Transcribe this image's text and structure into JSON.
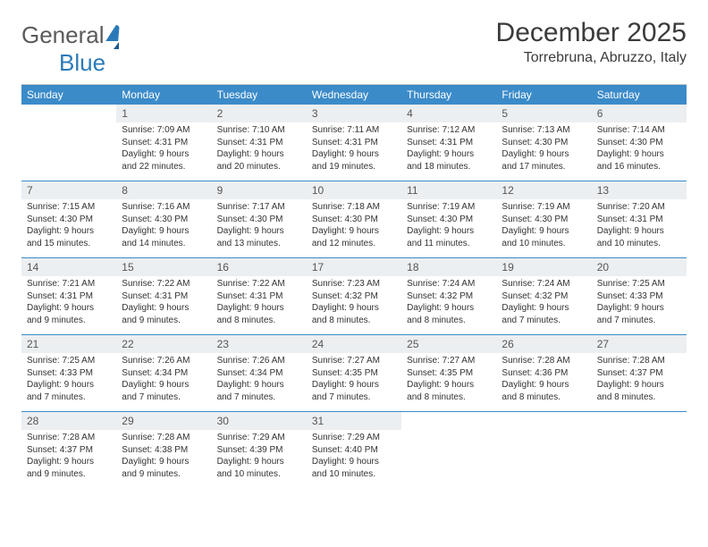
{
  "logo": {
    "part1": "General",
    "part2": "Blue"
  },
  "title": "December 2025",
  "location": "Torrebruna, Abruzzo, Italy",
  "colors": {
    "header_bg": "#3b8bc9",
    "header_text": "#ffffff",
    "daynum_bg": "#eceff1",
    "cell_border": "#3b8bc9",
    "body_text": "#333333",
    "logo_gray": "#5a5a5a",
    "logo_blue": "#2a7ab9"
  },
  "typography": {
    "title_fontsize": 30,
    "location_fontsize": 16,
    "dow_fontsize": 12,
    "daynum_fontsize": 12,
    "body_fontsize": 10
  },
  "days_of_week": [
    "Sunday",
    "Monday",
    "Tuesday",
    "Wednesday",
    "Thursday",
    "Friday",
    "Saturday"
  ],
  "start_offset": 1,
  "days": [
    {
      "n": "1",
      "sunrise": "Sunrise: 7:09 AM",
      "sunset": "Sunset: 4:31 PM",
      "day1": "Daylight: 9 hours",
      "day2": "and 22 minutes."
    },
    {
      "n": "2",
      "sunrise": "Sunrise: 7:10 AM",
      "sunset": "Sunset: 4:31 PM",
      "day1": "Daylight: 9 hours",
      "day2": "and 20 minutes."
    },
    {
      "n": "3",
      "sunrise": "Sunrise: 7:11 AM",
      "sunset": "Sunset: 4:31 PM",
      "day1": "Daylight: 9 hours",
      "day2": "and 19 minutes."
    },
    {
      "n": "4",
      "sunrise": "Sunrise: 7:12 AM",
      "sunset": "Sunset: 4:31 PM",
      "day1": "Daylight: 9 hours",
      "day2": "and 18 minutes."
    },
    {
      "n": "5",
      "sunrise": "Sunrise: 7:13 AM",
      "sunset": "Sunset: 4:30 PM",
      "day1": "Daylight: 9 hours",
      "day2": "and 17 minutes."
    },
    {
      "n": "6",
      "sunrise": "Sunrise: 7:14 AM",
      "sunset": "Sunset: 4:30 PM",
      "day1": "Daylight: 9 hours",
      "day2": "and 16 minutes."
    },
    {
      "n": "7",
      "sunrise": "Sunrise: 7:15 AM",
      "sunset": "Sunset: 4:30 PM",
      "day1": "Daylight: 9 hours",
      "day2": "and 15 minutes."
    },
    {
      "n": "8",
      "sunrise": "Sunrise: 7:16 AM",
      "sunset": "Sunset: 4:30 PM",
      "day1": "Daylight: 9 hours",
      "day2": "and 14 minutes."
    },
    {
      "n": "9",
      "sunrise": "Sunrise: 7:17 AM",
      "sunset": "Sunset: 4:30 PM",
      "day1": "Daylight: 9 hours",
      "day2": "and 13 minutes."
    },
    {
      "n": "10",
      "sunrise": "Sunrise: 7:18 AM",
      "sunset": "Sunset: 4:30 PM",
      "day1": "Daylight: 9 hours",
      "day2": "and 12 minutes."
    },
    {
      "n": "11",
      "sunrise": "Sunrise: 7:19 AM",
      "sunset": "Sunset: 4:30 PM",
      "day1": "Daylight: 9 hours",
      "day2": "and 11 minutes."
    },
    {
      "n": "12",
      "sunrise": "Sunrise: 7:19 AM",
      "sunset": "Sunset: 4:30 PM",
      "day1": "Daylight: 9 hours",
      "day2": "and 10 minutes."
    },
    {
      "n": "13",
      "sunrise": "Sunrise: 7:20 AM",
      "sunset": "Sunset: 4:31 PM",
      "day1": "Daylight: 9 hours",
      "day2": "and 10 minutes."
    },
    {
      "n": "14",
      "sunrise": "Sunrise: 7:21 AM",
      "sunset": "Sunset: 4:31 PM",
      "day1": "Daylight: 9 hours",
      "day2": "and 9 minutes."
    },
    {
      "n": "15",
      "sunrise": "Sunrise: 7:22 AM",
      "sunset": "Sunset: 4:31 PM",
      "day1": "Daylight: 9 hours",
      "day2": "and 9 minutes."
    },
    {
      "n": "16",
      "sunrise": "Sunrise: 7:22 AM",
      "sunset": "Sunset: 4:31 PM",
      "day1": "Daylight: 9 hours",
      "day2": "and 8 minutes."
    },
    {
      "n": "17",
      "sunrise": "Sunrise: 7:23 AM",
      "sunset": "Sunset: 4:32 PM",
      "day1": "Daylight: 9 hours",
      "day2": "and 8 minutes."
    },
    {
      "n": "18",
      "sunrise": "Sunrise: 7:24 AM",
      "sunset": "Sunset: 4:32 PM",
      "day1": "Daylight: 9 hours",
      "day2": "and 8 minutes."
    },
    {
      "n": "19",
      "sunrise": "Sunrise: 7:24 AM",
      "sunset": "Sunset: 4:32 PM",
      "day1": "Daylight: 9 hours",
      "day2": "and 7 minutes."
    },
    {
      "n": "20",
      "sunrise": "Sunrise: 7:25 AM",
      "sunset": "Sunset: 4:33 PM",
      "day1": "Daylight: 9 hours",
      "day2": "and 7 minutes."
    },
    {
      "n": "21",
      "sunrise": "Sunrise: 7:25 AM",
      "sunset": "Sunset: 4:33 PM",
      "day1": "Daylight: 9 hours",
      "day2": "and 7 minutes."
    },
    {
      "n": "22",
      "sunrise": "Sunrise: 7:26 AM",
      "sunset": "Sunset: 4:34 PM",
      "day1": "Daylight: 9 hours",
      "day2": "and 7 minutes."
    },
    {
      "n": "23",
      "sunrise": "Sunrise: 7:26 AM",
      "sunset": "Sunset: 4:34 PM",
      "day1": "Daylight: 9 hours",
      "day2": "and 7 minutes."
    },
    {
      "n": "24",
      "sunrise": "Sunrise: 7:27 AM",
      "sunset": "Sunset: 4:35 PM",
      "day1": "Daylight: 9 hours",
      "day2": "and 7 minutes."
    },
    {
      "n": "25",
      "sunrise": "Sunrise: 7:27 AM",
      "sunset": "Sunset: 4:35 PM",
      "day1": "Daylight: 9 hours",
      "day2": "and 8 minutes."
    },
    {
      "n": "26",
      "sunrise": "Sunrise: 7:28 AM",
      "sunset": "Sunset: 4:36 PM",
      "day1": "Daylight: 9 hours",
      "day2": "and 8 minutes."
    },
    {
      "n": "27",
      "sunrise": "Sunrise: 7:28 AM",
      "sunset": "Sunset: 4:37 PM",
      "day1": "Daylight: 9 hours",
      "day2": "and 8 minutes."
    },
    {
      "n": "28",
      "sunrise": "Sunrise: 7:28 AM",
      "sunset": "Sunset: 4:37 PM",
      "day1": "Daylight: 9 hours",
      "day2": "and 9 minutes."
    },
    {
      "n": "29",
      "sunrise": "Sunrise: 7:28 AM",
      "sunset": "Sunset: 4:38 PM",
      "day1": "Daylight: 9 hours",
      "day2": "and 9 minutes."
    },
    {
      "n": "30",
      "sunrise": "Sunrise: 7:29 AM",
      "sunset": "Sunset: 4:39 PM",
      "day1": "Daylight: 9 hours",
      "day2": "and 10 minutes."
    },
    {
      "n": "31",
      "sunrise": "Sunrise: 7:29 AM",
      "sunset": "Sunset: 4:40 PM",
      "day1": "Daylight: 9 hours",
      "day2": "and 10 minutes."
    }
  ]
}
